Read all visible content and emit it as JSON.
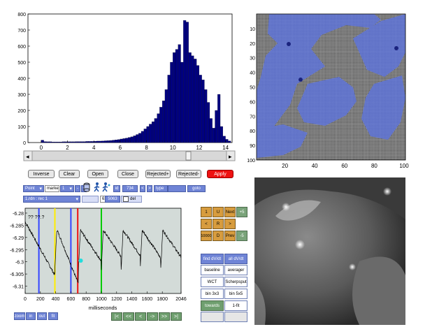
{
  "histogram": {
    "chart_data": {
      "type": "bar",
      "x": [
        0.1,
        0.3,
        0.5,
        0.7,
        0.9,
        1.1,
        1.3,
        1.5,
        1.7,
        1.9,
        2.1,
        2.3,
        2.5,
        2.7,
        2.9,
        3.1,
        3.3,
        3.5,
        3.7,
        3.9,
        4.1,
        4.3,
        4.5,
        4.7,
        4.9,
        5.1,
        5.3,
        5.5,
        5.7,
        5.9,
        6.1,
        6.3,
        6.5,
        6.7,
        6.9,
        7.1,
        7.3,
        7.5,
        7.7,
        7.9,
        8.1,
        8.3,
        8.5,
        8.7,
        8.9,
        9.1,
        9.3,
        9.5,
        9.7,
        9.9,
        10.1,
        10.3,
        10.5,
        10.7,
        10.9,
        11.1,
        11.3,
        11.5,
        11.7,
        11.9,
        12.1,
        12.3,
        12.5,
        12.7,
        12.9,
        13.1,
        13.3,
        13.5,
        13.7,
        13.9,
        14.1,
        14.3
      ],
      "values": [
        15,
        6,
        5,
        5,
        4,
        4,
        4,
        4,
        5,
        5,
        5,
        5,
        5,
        6,
        6,
        6,
        6,
        7,
        7,
        7,
        8,
        9,
        9,
        10,
        11,
        12,
        13,
        15,
        17,
        19,
        22,
        25,
        28,
        32,
        36,
        42,
        50,
        58,
        70,
        85,
        100,
        115,
        130,
        150,
        180,
        220,
        260,
        330,
        420,
        500,
        560,
        580,
        610,
        500,
        760,
        750,
        560,
        540,
        520,
        480,
        420,
        390,
        330,
        250,
        150,
        90,
        200,
        300,
        100,
        40,
        20,
        10
      ],
      "xlim": [
        -1,
        14.5
      ],
      "ylim": [
        0,
        800
      ],
      "xticks": [
        "0",
        "2",
        "4",
        "6",
        "8",
        "10",
        "12",
        "14"
      ],
      "yticks": [
        "0",
        "100",
        "200",
        "300",
        "400",
        "500",
        "600",
        "700",
        "800"
      ],
      "color": "#000080"
    }
  },
  "heatmap": {
    "xticks": [
      "20",
      "40",
      "60",
      "80",
      "100"
    ],
    "yticks": [
      "10",
      "20",
      "30",
      "40",
      "50",
      "60",
      "70",
      "80",
      "90",
      "100"
    ]
  },
  "buttons": [
    "Inverse",
    "Clear",
    "Open",
    "Close",
    "Rejected+",
    "Rejected-",
    "Apply"
  ],
  "controls": {
    "point_select": "Point",
    "marker_label": "marker",
    "marker_value": "1",
    "minus": "-",
    "plus": "+",
    "id_label": "id",
    "id_value": "734",
    "lt": "<",
    "gt": ">",
    "type_label": "type",
    "type_value": "",
    "goto": "goto",
    "file_select": "1.rdn : rec 1",
    "file_field": "",
    "frame_select": "63@50",
    "frame_value": "5063",
    "del_label": "del"
  },
  "trace": {
    "chart_data": {
      "type": "line",
      "xlabel": "milliseconds",
      "xlim": [
        0,
        2046
      ],
      "ylim": [
        -6.313,
        -6.278
      ],
      "xticks": [
        "0",
        "200",
        "400",
        "600",
        "800",
        "1000",
        "1200",
        "1400",
        "1600",
        "1800",
        "2046"
      ],
      "yticks": [
        "-6.28",
        "-6.285",
        "-6.29",
        "-6.295",
        "-6.3",
        "-6.305",
        "-6.31"
      ],
      "ytick_values": [
        -6.28,
        -6.285,
        -6.29,
        -6.295,
        -6.3,
        -6.305,
        -6.31
      ],
      "annotation": "?? ??.?",
      "markers": [
        {
          "x": 180,
          "color": "#3344ff"
        },
        {
          "x": 390,
          "color": "#ffee00"
        },
        {
          "x": 600,
          "color": "#3344ff"
        },
        {
          "x": 690,
          "color": "#ee1111"
        },
        {
          "x": 1000,
          "color": "#00cc00"
        }
      ],
      "cursor": {
        "x": 730,
        "y": -6.2995,
        "color": "#22dddd"
      }
    }
  },
  "zoom": {
    "label": "zoom",
    "in": "in",
    "out": "out",
    "fit": "fit"
  },
  "nav": [
    "|<",
    "<<",
    "<",
    "->",
    ">>",
    ">|"
  ],
  "grid": [
    "1",
    "U",
    "Next",
    "+5",
    "<",
    "R",
    ">",
    "10000",
    "D",
    "Prev",
    "-5"
  ],
  "tools": [
    "find dV/dt",
    "all dV/dt",
    "baseline",
    "averager",
    "WCT",
    "Scherpsput",
    "bin 3x3",
    "bin 5x5",
    "towards",
    "1-fit",
    "",
    ""
  ]
}
